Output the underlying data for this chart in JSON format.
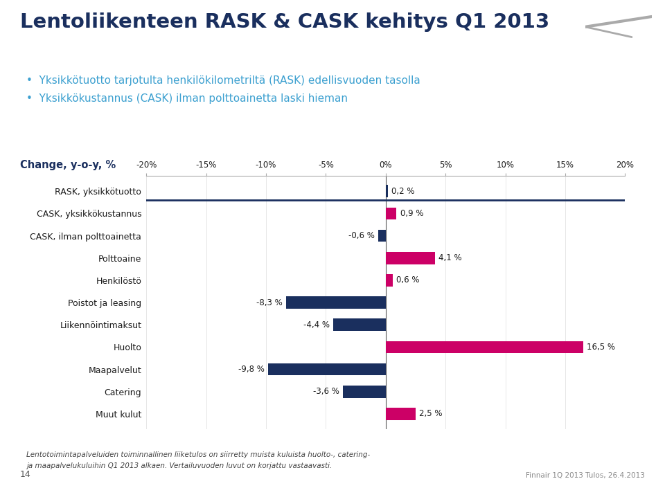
{
  "title": "Lentoliikenteen RASK & CASK kehitys Q1 2013",
  "bullet1": "Yksikkötuotto tarjotulta henkilökilometriltä (RASK) edellisvuoden tasolla",
  "bullet2": "Yksikkökustannus (CASK) ilman polttoainetta laski hieman",
  "axis_label": "Change, y-o-y, %",
  "categories": [
    "RASK, yksikkötuotto",
    "CASK, yksikkökustannus",
    "CASK, ilman polttoainetta",
    "Polttoaine",
    "Henkilöstö",
    "Poistot ja leasing",
    "Liikennöintimaksut",
    "Huolto",
    "Maapalvelut",
    "Catering",
    "Muut kulut"
  ],
  "values": [
    0.2,
    0.9,
    -0.6,
    4.1,
    0.6,
    -8.3,
    -4.4,
    16.5,
    -9.8,
    -3.6,
    2.5
  ],
  "bar_colors": [
    "#1a2f5e",
    "#cc0066",
    "#1a2f5e",
    "#cc0066",
    "#cc0066",
    "#1a2f5e",
    "#1a2f5e",
    "#cc0066",
    "#1a2f5e",
    "#1a2f5e",
    "#cc0066"
  ],
  "xlim": [
    -20,
    20
  ],
  "xticks": [
    -20,
    -15,
    -10,
    -5,
    0,
    5,
    10,
    15,
    20
  ],
  "xtick_labels": [
    "-20%",
    "-15%",
    "-10%",
    "-5%",
    "0%",
    "5%",
    "10%",
    "15%",
    "20%"
  ],
  "bg_color": "#ffffff",
  "title_color": "#1a2f5e",
  "subtitle_color": "#3ca0d0",
  "axis_label_color": "#1a2f5e",
  "footnote1": "Lentotoimintapalveluiden toiminnallinen liiketulos on siirretty muista kuluista huolto-, catering-",
  "footnote2": "ja maapalvelukuluihin Q1 2013 alkaen. Vertailuvuoden luvut on korjattu vastaavasti.",
  "page_num": "14",
  "right_footer": "Finnair 1Q 2013 Tulos, 26.4.2013"
}
